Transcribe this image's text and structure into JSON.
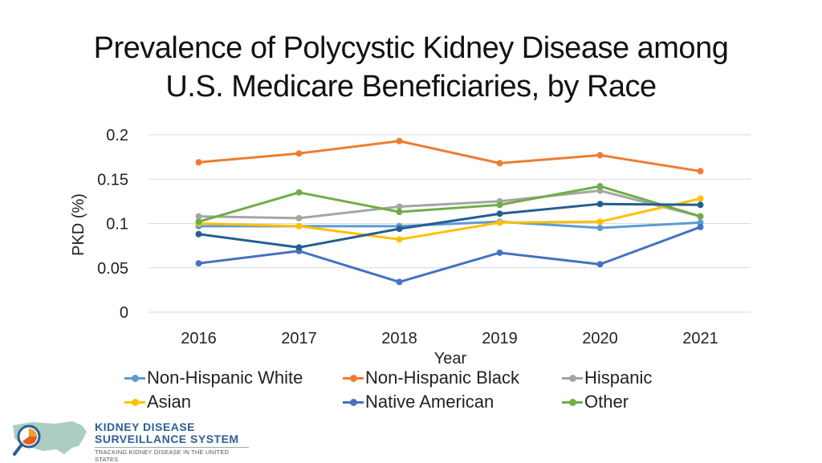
{
  "title_line1": "Prevalence of Polycystic Kidney Disease among",
  "title_line2": "U.S. Medicare Beneficiaries, by Race",
  "chart_data": {
    "type": "line",
    "xlabel": "Year",
    "ylabel": "PKD (%)",
    "ylim": [
      0,
      0.2
    ],
    "yticks": [
      "0",
      "0.05",
      "0.1",
      "0.15",
      "0.2"
    ],
    "grid": true,
    "categories": [
      "2016",
      "2017",
      "2018",
      "2019",
      "2020",
      "2021"
    ],
    "series": [
      {
        "name": "Non-Hispanic White",
        "color": "#5b9bd5",
        "values": [
          0.097,
          0.097,
          0.097,
          0.102,
          0.095,
          0.101
        ]
      },
      {
        "name": "Non-Hispanic Black",
        "color": "#ed7d31",
        "values": [
          0.169,
          0.179,
          0.193,
          0.168,
          0.177,
          0.159
        ]
      },
      {
        "name": "Hispanic",
        "color": "#a5a5a5",
        "values": [
          0.108,
          0.106,
          0.119,
          0.125,
          0.137,
          0.108
        ]
      },
      {
        "name": "Asian",
        "color": "#ffc000",
        "values": [
          0.1,
          0.097,
          0.082,
          0.101,
          0.102,
          0.128
        ]
      },
      {
        "name": "Native American",
        "color": "#4472c4",
        "values": [
          0.055,
          0.069,
          0.034,
          0.067,
          0.054,
          0.096
        ]
      },
      {
        "name": "Other",
        "color": "#70ad47",
        "values": [
          0.102,
          0.135,
          0.113,
          0.121,
          0.142,
          0.108
        ]
      },
      {
        "name": "",
        "color": "#255e91",
        "values": [
          0.088,
          0.073,
          0.094,
          0.111,
          0.122,
          0.121
        ]
      }
    ]
  },
  "logo": {
    "line1": "KIDNEY DISEASE",
    "line2": "SURVEILLANCE SYSTEM",
    "tagline": "TRACKING KIDNEY DISEASE IN THE UNITED STATES"
  }
}
